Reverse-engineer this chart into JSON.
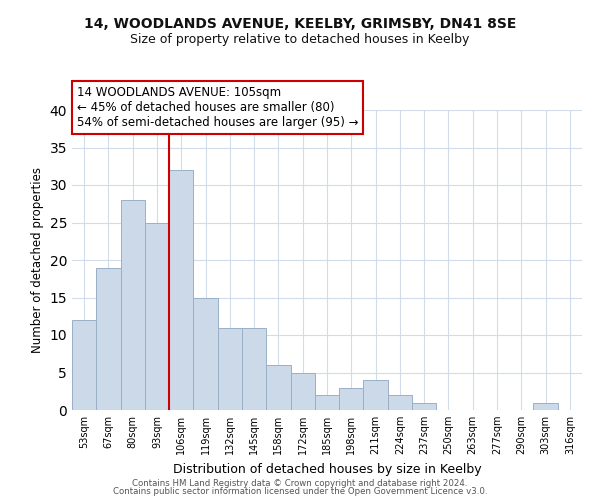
{
  "title1": "14, WOODLANDS AVENUE, KEELBY, GRIMSBY, DN41 8SE",
  "title2": "Size of property relative to detached houses in Keelby",
  "xlabel": "Distribution of detached houses by size in Keelby",
  "ylabel": "Number of detached properties",
  "bar_labels": [
    "53sqm",
    "67sqm",
    "80sqm",
    "93sqm",
    "106sqm",
    "119sqm",
    "132sqm",
    "145sqm",
    "158sqm",
    "172sqm",
    "185sqm",
    "198sqm",
    "211sqm",
    "224sqm",
    "237sqm",
    "250sqm",
    "263sqm",
    "277sqm",
    "290sqm",
    "303sqm",
    "316sqm"
  ],
  "bar_values": [
    12,
    19,
    28,
    25,
    32,
    15,
    11,
    11,
    6,
    5,
    2,
    3,
    4,
    2,
    1,
    0,
    0,
    0,
    0,
    1,
    0
  ],
  "bar_color": "#ccd9e8",
  "bar_edge_color": "#9ab0c8",
  "vline_color": "#cc0000",
  "annotation_line1": "14 WOODLANDS AVENUE: 105sqm",
  "annotation_line2": "← 45% of detached houses are smaller (80)",
  "annotation_line3": "54% of semi-detached houses are larger (95) →",
  "annotation_box_color": "#ffffff",
  "annotation_box_edge": "#cc0000",
  "ylim": [
    0,
    40
  ],
  "yticks": [
    0,
    5,
    10,
    15,
    20,
    25,
    30,
    35,
    40
  ],
  "footer1": "Contains HM Land Registry data © Crown copyright and database right 2024.",
  "footer2": "Contains public sector information licensed under the Open Government Licence v3.0.",
  "background_color": "#ffffff",
  "grid_color": "#d0dce8"
}
